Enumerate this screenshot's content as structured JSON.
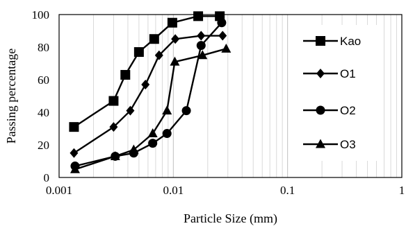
{
  "chart_data": {
    "type": "line",
    "title": "",
    "xlabel": "Particle Size (mm)",
    "ylabel": "Passing percentage",
    "xscale": "log",
    "xlim": [
      0.001,
      1
    ],
    "ylim": [
      0,
      100
    ],
    "x_ticks": [
      "0.001",
      "0.01",
      "0.1",
      "1"
    ],
    "y_ticks": [
      "0",
      "20",
      "40",
      "60",
      "80",
      "100"
    ],
    "grid": "vertical, logarithmic major and minor",
    "legend_position": "right",
    "colors": {
      "series": "#000000",
      "grid_minor": "#d9d9d9",
      "grid_major": "#bfbfbf"
    },
    "series": [
      {
        "name": "Kao",
        "marker": "square",
        "x": [
          0.00135,
          0.003,
          0.0038,
          0.005,
          0.0068,
          0.0098,
          0.0165,
          0.0255
        ],
        "y": [
          31,
          47,
          63,
          77,
          85,
          95,
          99,
          99
        ]
      },
      {
        "name": "O1",
        "marker": "diamond",
        "x": [
          0.00135,
          0.003,
          0.0042,
          0.0057,
          0.0075,
          0.0104,
          0.0175,
          0.027
        ],
        "y": [
          15,
          31,
          41,
          57,
          75,
          85,
          87,
          87
        ]
      },
      {
        "name": "O2",
        "marker": "circle",
        "x": [
          0.00138,
          0.0031,
          0.0045,
          0.0066,
          0.0088,
          0.013,
          0.0175,
          0.0265
        ],
        "y": [
          7,
          13,
          15,
          21,
          27,
          41,
          81,
          95
        ]
      },
      {
        "name": "O3",
        "marker": "triangle",
        "x": [
          0.00138,
          0.0031,
          0.0045,
          0.0066,
          0.0088,
          0.0103,
          0.018,
          0.029
        ],
        "y": [
          5,
          13,
          17,
          27,
          41,
          71,
          75,
          79
        ]
      }
    ]
  }
}
